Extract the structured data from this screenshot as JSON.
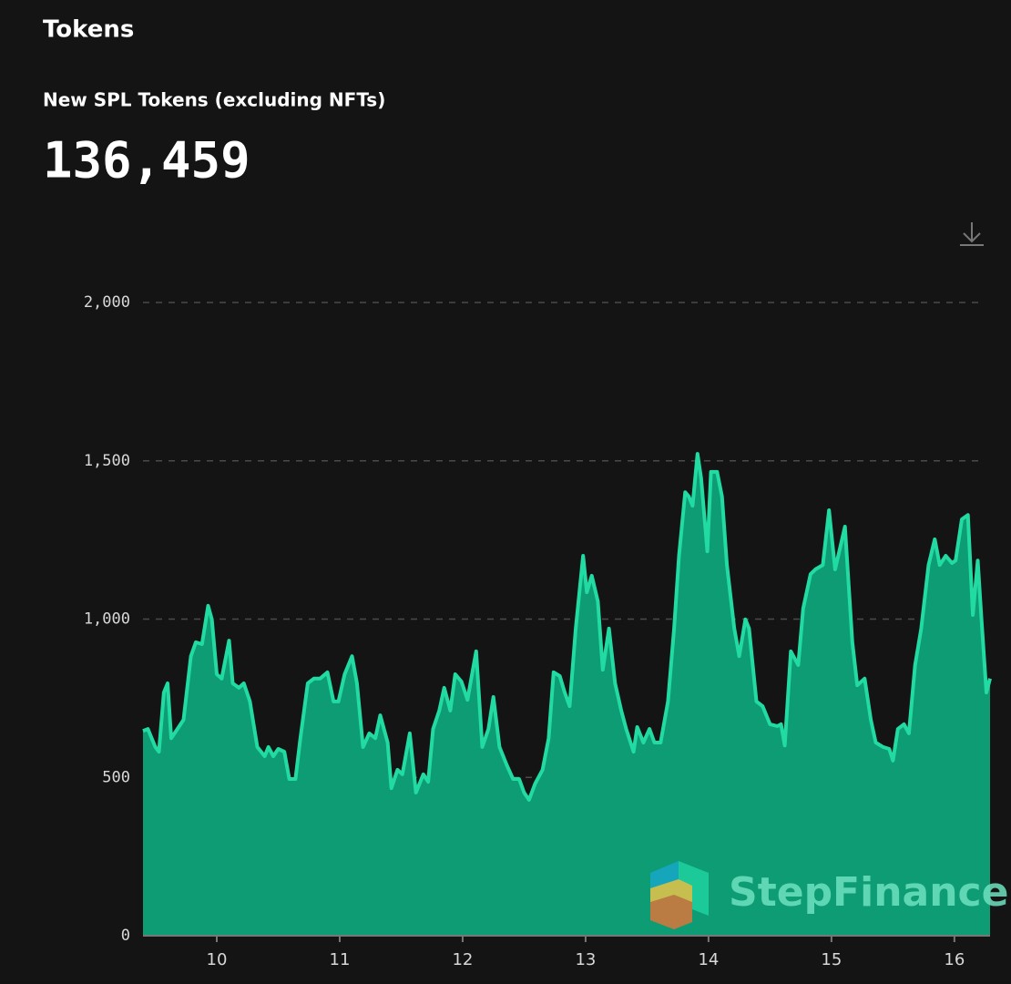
{
  "header": {
    "title": "Tokens"
  },
  "chart_data": {
    "type": "area",
    "title": "New SPL Tokens (excluding NFTs)",
    "headline": "136,459",
    "watermark": "StepFinance",
    "fill_color": "#0d9c74",
    "line_color": "#22dba3",
    "grid": true,
    "xlim": [
      9.4,
      16.29
    ],
    "xticks": [
      10,
      11,
      12,
      13,
      14,
      15,
      16
    ],
    "ylim": [
      0,
      2000
    ],
    "yticks": [
      0,
      500,
      {
        "value": 1000,
        "label": "1,000"
      },
      {
        "value": 1500,
        "label": "1,500"
      },
      {
        "value": 2000,
        "label": "2,000"
      }
    ],
    "x": [
      9.4,
      9.44,
      9.5,
      9.53,
      9.57,
      9.6,
      9.63,
      9.68,
      9.73,
      9.79,
      9.83,
      9.88,
      9.93,
      9.96,
      10.0,
      10.04,
      10.1,
      10.13,
      10.18,
      10.22,
      10.27,
      10.33,
      10.39,
      10.42,
      10.46,
      10.5,
      10.55,
      10.59,
      10.64,
      10.68,
      10.74,
      10.79,
      10.84,
      10.9,
      10.95,
      10.99,
      11.04,
      11.1,
      11.14,
      11.19,
      11.24,
      11.29,
      11.33,
      11.39,
      11.42,
      11.47,
      11.51,
      11.57,
      11.62,
      11.68,
      11.72,
      11.76,
      11.81,
      11.85,
      11.9,
      11.94,
      11.99,
      12.04,
      12.07,
      12.11,
      12.16,
      12.21,
      12.25,
      12.3,
      12.36,
      12.41,
      12.46,
      12.5,
      12.54,
      12.59,
      12.65,
      12.7,
      12.74,
      12.79,
      12.83,
      12.87,
      12.92,
      12.98,
      13.01,
      13.05,
      13.1,
      13.14,
      13.19,
      13.24,
      13.29,
      13.33,
      13.39,
      13.42,
      13.47,
      13.52,
      13.56,
      13.61,
      13.67,
      13.72,
      13.76,
      13.81,
      13.84,
      13.87,
      13.91,
      13.94,
      13.99,
      14.02,
      14.07,
      14.11,
      14.15,
      14.21,
      14.25,
      14.3,
      14.33,
      14.39,
      14.44,
      14.5,
      14.56,
      14.59,
      14.62,
      14.67,
      14.73,
      14.77,
      14.83,
      14.87,
      14.93,
      14.98,
      15.03,
      15.11,
      15.17,
      15.21,
      15.27,
      15.32,
      15.36,
      15.42,
      15.47,
      15.5,
      15.54,
      15.59,
      15.63,
      15.68,
      15.73,
      15.79,
      15.84,
      15.88,
      15.93,
      15.98,
      16.01,
      16.06,
      16.11,
      16.15,
      16.19,
      16.22,
      16.26,
      16.29
    ],
    "values": [
      647,
      653,
      596,
      581,
      768,
      797,
      624,
      653,
      682,
      883,
      927,
      921,
      1042,
      999,
      826,
      812,
      932,
      797,
      783,
      797,
      740,
      596,
      567,
      596,
      567,
      590,
      581,
      495,
      495,
      624,
      797,
      812,
      812,
      832,
      740,
      740,
      826,
      883,
      797,
      596,
      639,
      624,
      696,
      610,
      466,
      524,
      510,
      639,
      452,
      510,
      486,
      653,
      711,
      783,
      711,
      826,
      803,
      745,
      812,
      898,
      596,
      653,
      754,
      596,
      538,
      495,
      495,
      452,
      429,
      481,
      524,
      624,
      832,
      820,
      768,
      725,
      970,
      1200,
      1085,
      1137,
      1056,
      840,
      970,
      797,
      711,
      653,
      581,
      659,
      610,
      653,
      610,
      610,
      740,
      970,
      1200,
      1401,
      1387,
      1358,
      1522,
      1445,
      1214,
      1465,
      1465,
      1387,
      1171,
      970,
      883,
      999,
      970,
      740,
      725,
      668,
      662,
      668,
      601,
      898,
      855,
      1033,
      1142,
      1157,
      1171,
      1344,
      1157,
      1292,
      927,
      791,
      812,
      682,
      610,
      596,
      590,
      553,
      653,
      668,
      639,
      855,
      970,
      1171,
      1252,
      1171,
      1200,
      1177,
      1185,
      1315,
      1329,
      1013,
      1185,
      999,
      768,
      812
    ]
  }
}
